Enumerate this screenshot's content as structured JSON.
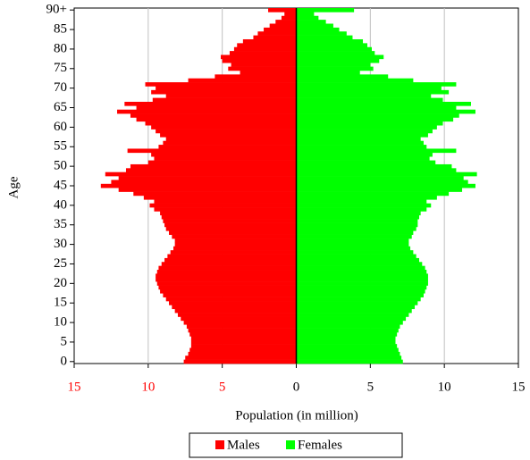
{
  "chart_data": {
    "type": "pyramid",
    "x_label": "Population (in million)",
    "y_label": "Age",
    "categories": [
      "0",
      null,
      null,
      null,
      null,
      "5",
      null,
      null,
      null,
      null,
      "10",
      null,
      null,
      null,
      null,
      "15",
      null,
      null,
      null,
      null,
      "20",
      null,
      null,
      null,
      null,
      "25",
      null,
      null,
      null,
      null,
      "30",
      null,
      null,
      null,
      null,
      "35",
      null,
      null,
      null,
      null,
      "40",
      null,
      null,
      null,
      null,
      "45",
      null,
      null,
      null,
      null,
      "50",
      null,
      null,
      null,
      null,
      "55",
      null,
      null,
      null,
      null,
      "60",
      null,
      null,
      null,
      null,
      "65",
      null,
      null,
      null,
      null,
      "70",
      null,
      null,
      null,
      null,
      "75",
      null,
      null,
      null,
      null,
      "80",
      null,
      null,
      null,
      null,
      "85",
      null,
      null,
      null,
      null,
      "90+"
    ],
    "series": [
      {
        "name": "Males",
        "color": "#ff0000",
        "values": [
          7.6,
          7.5,
          7.3,
          7.2,
          7.1,
          7.1,
          7.1,
          7.2,
          7.3,
          7.4,
          7.6,
          7.8,
          8.0,
          8.2,
          8.4,
          8.6,
          8.8,
          9.0,
          9.2,
          9.3,
          9.4,
          9.5,
          9.5,
          9.4,
          9.3,
          9.1,
          8.9,
          8.7,
          8.5,
          8.3,
          8.2,
          8.2,
          8.4,
          8.6,
          8.8,
          8.9,
          9.0,
          9.1,
          9.2,
          9.6,
          9.9,
          9.6,
          10.3,
          11.0,
          12.0,
          13.2,
          12.5,
          12.0,
          12.9,
          11.5,
          11.2,
          10.0,
          9.6,
          9.8,
          11.4,
          9.3,
          9.0,
          8.8,
          9.2,
          9.5,
          9.8,
          10.2,
          10.8,
          11.2,
          12.1,
          10.8,
          11.6,
          9.7,
          8.8,
          9.8,
          9.5,
          10.2,
          7.3,
          5.5,
          3.8,
          4.6,
          4.4,
          5.0,
          5.1,
          4.5,
          4.2,
          4.0,
          3.6,
          2.9,
          2.6,
          2.2,
          1.8,
          1.4,
          1.0,
          0.8,
          1.9
        ]
      },
      {
        "name": "Females",
        "color": "#00ff00",
        "values": [
          7.2,
          7.1,
          7.0,
          6.9,
          6.8,
          6.7,
          6.7,
          6.8,
          6.9,
          7.0,
          7.2,
          7.4,
          7.6,
          7.8,
          8.0,
          8.2,
          8.4,
          8.6,
          8.7,
          8.8,
          8.9,
          8.9,
          8.9,
          8.8,
          8.7,
          8.5,
          8.3,
          8.1,
          7.9,
          7.7,
          7.6,
          7.6,
          7.8,
          7.9,
          8.1,
          8.2,
          8.2,
          8.3,
          8.4,
          8.8,
          9.1,
          8.8,
          9.5,
          10.3,
          11.2,
          12.1,
          11.6,
          11.3,
          12.2,
          10.8,
          10.5,
          9.4,
          9.0,
          9.2,
          10.8,
          8.8,
          8.6,
          8.4,
          8.9,
          9.2,
          9.5,
          9.9,
          10.6,
          11.0,
          12.1,
          10.8,
          11.8,
          9.9,
          9.1,
          10.3,
          9.8,
          10.8,
          7.9,
          6.2,
          4.3,
          5.2,
          5.0,
          5.6,
          5.9,
          5.3,
          5.1,
          4.8,
          4.5,
          3.8,
          3.4,
          2.9,
          2.5,
          2.0,
          1.5,
          1.2,
          3.9
        ]
      }
    ],
    "xlim": [
      -15,
      15
    ],
    "xticks": [
      {
        "value": -15,
        "label": "15"
      },
      {
        "value": -10,
        "label": "10"
      },
      {
        "value": -5,
        "label": "5"
      },
      0,
      5,
      10,
      15
    ],
    "grid": true,
    "legend": "bottom"
  }
}
